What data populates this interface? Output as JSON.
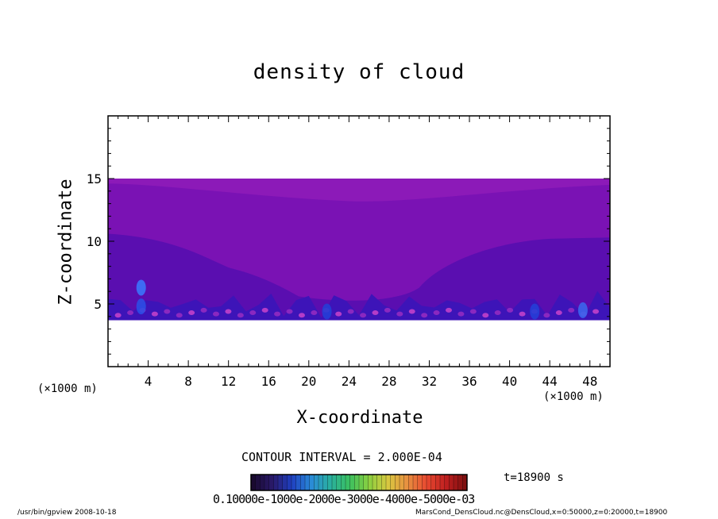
{
  "chart_data": {
    "type": "heatmap",
    "title": "density of cloud",
    "xlabel": "X-coordinate",
    "ylabel": "Z-coordinate",
    "x_unit": "(×1000 m)",
    "xlim": [
      0,
      50
    ],
    "ylim": [
      0,
      20
    ],
    "x_ticks": [
      "4",
      "8",
      "12",
      "16",
      "20",
      "24",
      "28",
      "32",
      "36",
      "40",
      "44",
      "48"
    ],
    "y_ticks": [
      "5",
      "10",
      "15"
    ],
    "field_extent": {
      "z_bottom": 3.7,
      "z_top": 15.0
    },
    "bands": [
      {
        "zone": "top layer",
        "z_low": 13.2,
        "z_high": 15.0,
        "color": "#8c1ab8"
      },
      {
        "zone": "upper mid",
        "z_low": 10.0,
        "z_high": 14.5,
        "color": "#7a12b4"
      },
      {
        "zone": "lower mid",
        "z_low": 5.0,
        "z_high": 10.3,
        "color": "#5a0eb0"
      },
      {
        "zone": "near surface",
        "z_low": 3.7,
        "z_high": 6.0,
        "color": "#3d14b8"
      }
    ],
    "blobs": [
      {
        "x": 3.3,
        "z": 6.3,
        "color": "#3a7aff"
      },
      {
        "x": 3.3,
        "z": 4.8,
        "color": "#2a50e8"
      },
      {
        "x": 21.8,
        "z": 4.4,
        "color": "#2340d8"
      },
      {
        "x": 42.5,
        "z": 4.4,
        "color": "#2340d8"
      },
      {
        "x": 47.3,
        "z": 4.5,
        "color": "#3a6af0"
      }
    ],
    "colorbar": {
      "min": "0.1000E-10",
      "labels": [
        "0.1000E-10",
        "0.1000E-03",
        "0.2000E-03",
        "0.3000E-03",
        "0.4000E-03",
        "0.5000E-03"
      ],
      "colors": [
        "#1a0a30",
        "#2a1a6a",
        "#1f3fc0",
        "#2a8ad8",
        "#2ab0a0",
        "#3ac060",
        "#8ad040",
        "#d8c840",
        "#e89040",
        "#e84a30",
        "#c02020",
        "#801010"
      ]
    },
    "contour_interval": "CONTOUR INTERVAL = 2.000E-04",
    "time": "t=18900  s"
  },
  "labels": {
    "x_unit_left": "(×1000 m)",
    "x_unit_right": "(×1000 m)",
    "colorbar_text": "0.10000e-1000e-2000e-3000e-4000e-5000e-03"
  },
  "footer": {
    "left": "/usr/bin/gpview   2008-10-18",
    "right": "MarsCond_DensCloud.nc@DensCloud,x=0:50000,z=0:20000,t=18900"
  }
}
